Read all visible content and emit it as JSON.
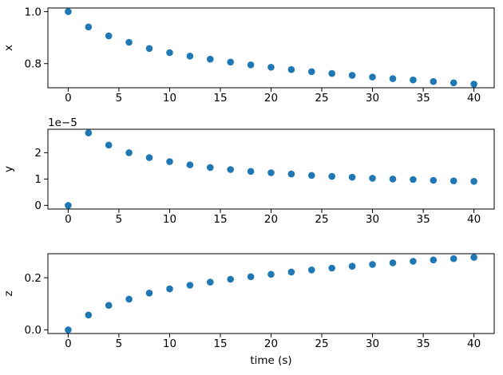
{
  "figure": {
    "background": "#ffffff",
    "frame_color": "#000000",
    "tick_color": "#000000",
    "text_color": "#000000",
    "marker_color": "#1f77b4"
  },
  "chart_data": [
    {
      "type": "scatter",
      "ylabel": "x",
      "x": [
        0,
        2,
        4,
        6,
        8,
        10,
        12,
        14,
        16,
        18,
        20,
        22,
        24,
        26,
        28,
        30,
        32,
        34,
        36,
        38,
        40
      ],
      "y": [
        1.0,
        0.941,
        0.907,
        0.882,
        0.858,
        0.842,
        0.829,
        0.817,
        0.806,
        0.795,
        0.786,
        0.777,
        0.769,
        0.762,
        0.755,
        0.748,
        0.742,
        0.737,
        0.731,
        0.726,
        0.721
      ],
      "xlim": [
        -2,
        42
      ],
      "ylim": [
        0.707,
        1.014
      ],
      "xticks": [
        0,
        5,
        10,
        15,
        20,
        25,
        30,
        35,
        40
      ],
      "xtick_labels": [
        "0",
        "5",
        "10",
        "15",
        "20",
        "25",
        "30",
        "35",
        "40"
      ],
      "yticks": [
        0.8,
        1.0
      ],
      "ytick_labels": [
        "0.8",
        "1.0"
      ],
      "grid": false,
      "legend": null
    },
    {
      "type": "scatter",
      "ylabel": "y",
      "offset_label": "1e−5",
      "x": [
        0,
        2,
        4,
        6,
        8,
        10,
        12,
        14,
        16,
        18,
        20,
        22,
        24,
        26,
        28,
        30,
        32,
        34,
        36,
        38,
        40
      ],
      "y": [
        0.0,
        2.75e-05,
        2.29e-05,
        2e-05,
        1.81e-05,
        1.66e-05,
        1.54e-05,
        1.44e-05,
        1.36e-05,
        1.29e-05,
        1.24e-05,
        1.19e-05,
        1.14e-05,
        1.1e-05,
        1.07e-05,
        1.03e-05,
        1e-05,
        9.8e-06,
        9.5e-06,
        9.3e-06,
        9.1e-06
      ],
      "xlim": [
        -2,
        42
      ],
      "ylim": [
        -1.4e-06,
        2.89e-05
      ],
      "xticks": [
        0,
        5,
        10,
        15,
        20,
        25,
        30,
        35,
        40
      ],
      "xtick_labels": [
        "0",
        "5",
        "10",
        "15",
        "20",
        "25",
        "30",
        "35",
        "40"
      ],
      "yticks": [
        0,
        1e-05,
        2e-05
      ],
      "ytick_labels": [
        "0",
        "1",
        "2"
      ],
      "grid": false,
      "legend": null
    },
    {
      "type": "scatter",
      "ylabel": "z",
      "xlabel": "time (s)",
      "x": [
        0,
        2,
        4,
        6,
        8,
        10,
        12,
        14,
        16,
        18,
        20,
        22,
        24,
        26,
        28,
        30,
        32,
        34,
        36,
        38,
        40
      ],
      "y": [
        0.0,
        0.057,
        0.094,
        0.118,
        0.141,
        0.157,
        0.171,
        0.183,
        0.194,
        0.204,
        0.213,
        0.222,
        0.23,
        0.237,
        0.244,
        0.251,
        0.257,
        0.263,
        0.268,
        0.273,
        0.278
      ],
      "xlim": [
        -2,
        42
      ],
      "ylim": [
        -0.014,
        0.292
      ],
      "xticks": [
        0,
        5,
        10,
        15,
        20,
        25,
        30,
        35,
        40
      ],
      "xtick_labels": [
        "0",
        "5",
        "10",
        "15",
        "20",
        "25",
        "30",
        "35",
        "40"
      ],
      "yticks": [
        0.0,
        0.2
      ],
      "ytick_labels": [
        "0.0",
        "0.2"
      ],
      "grid": false,
      "legend": null
    }
  ]
}
